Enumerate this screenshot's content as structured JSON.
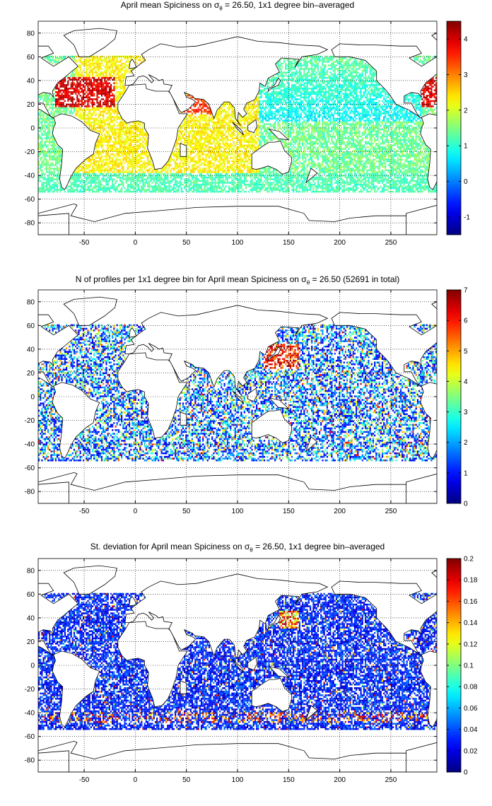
{
  "chart_data": [
    {
      "type": "heatmap",
      "title_pre": "April mean Spiciness on σ",
      "title_sub": "θ",
      "title_post": " = 26.50, 1x1 degree bin–averaged",
      "xlim": [
        -95,
        295
      ],
      "ylim": [
        -90,
        90
      ],
      "x_ticks": [
        "-50",
        "0",
        "50",
        "100",
        "150",
        "200",
        "250"
      ],
      "y_ticks": [
        "-80",
        "-60",
        "-40",
        "-20",
        "0",
        "20",
        "40",
        "60",
        "80"
      ],
      "grid": true,
      "colormap": "jet",
      "colorbar_lim": [
        -1.5,
        4.5
      ],
      "colorbar_ticks": [
        "-1",
        "0",
        "1",
        "2",
        "3",
        "4"
      ],
      "field": "spice"
    },
    {
      "type": "heatmap",
      "title_pre": "N of profiles per 1x1 degree bin for April mean Spiciness on σ",
      "title_sub": "θ",
      "title_post": " = 26.50 (52691 in total)",
      "xlim": [
        -95,
        295
      ],
      "ylim": [
        -90,
        90
      ],
      "x_ticks": [
        "-50",
        "0",
        "50",
        "100",
        "150",
        "200",
        "250"
      ],
      "y_ticks": [
        "-80",
        "-60",
        "-40",
        "-20",
        "0",
        "20",
        "40",
        "60",
        "80"
      ],
      "grid": true,
      "colormap": "jet",
      "colorbar_lim": [
        0,
        7
      ],
      "colorbar_ticks": [
        "0",
        "1",
        "2",
        "3",
        "4",
        "5",
        "6",
        "7"
      ],
      "field": "count"
    },
    {
      "type": "heatmap",
      "title_pre": "St. deviation for April mean Spiciness on σ",
      "title_sub": "θ",
      "title_post": " = 26.50, 1x1 degree bin–averaged",
      "xlim": [
        -95,
        295
      ],
      "ylim": [
        -90,
        90
      ],
      "x_ticks": [
        "-50",
        "0",
        "50",
        "100",
        "150",
        "200",
        "250"
      ],
      "y_ticks": [
        "-80",
        "-60",
        "-40",
        "-20",
        "0",
        "20",
        "40",
        "60",
        "80"
      ],
      "grid": true,
      "colormap": "jet",
      "colorbar_lim": [
        0,
        0.2
      ],
      "colorbar_ticks": [
        "0",
        "0.02",
        "0.04",
        "0.06",
        "0.08",
        "0.1",
        "0.12",
        "0.14",
        "0.16",
        "0.18",
        "0.2"
      ],
      "field": "std"
    }
  ]
}
